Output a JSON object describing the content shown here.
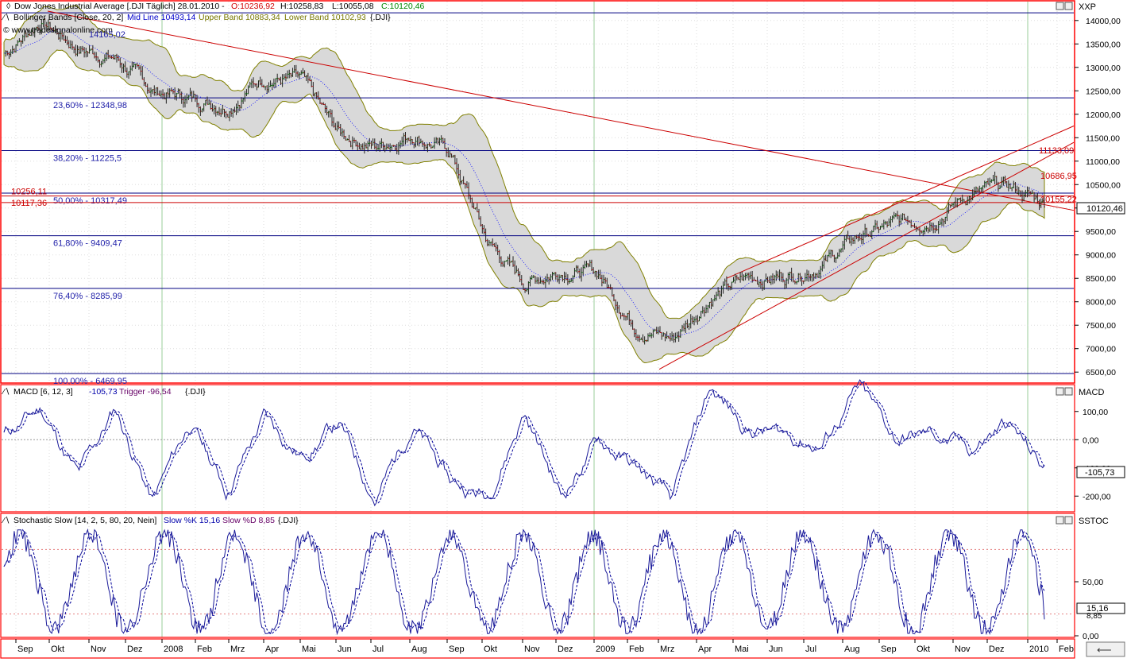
{
  "panes": {
    "price": {
      "title_line": "Dow Jones Industrial Average [.DJI  Täglich] 28.01.2010 - ",
      "ohlc": {
        "o": "O:10236,92",
        "h": "H:10258,83",
        "l": "L:10055,08",
        "c": "C:10120,46"
      },
      "bb_label": "Bollinger Bands [Close, 20, 2]",
      "bb_mid": "Mid Line 10493,14",
      "bb_upper": "Upper Band 10883,34",
      "bb_lower": "Lower Band 10102,93",
      "bb_sym": "{.DJI}",
      "watermark": "© www.tradesignalonline.com",
      "pane_label": "XXP",
      "last_value": "10120,46",
      "y_ticks": [
        "6500,00",
        "7000,00",
        "7500,00",
        "8000,00",
        "8500,00",
        "9000,00",
        "9500,00",
        "10000,00",
        "10500,00",
        "11000,00",
        "11500,00",
        "12000,00",
        "12500,00",
        "13000,00",
        "13500,00",
        "14000,00"
      ]
    },
    "macd": {
      "label": "MACD [6, 12, 3]",
      "value": "-105,73",
      "trigger": "Trigger -96,54",
      "sym": "{.DJI}",
      "pane_label": "MACD",
      "last_value": "-105,73",
      "y_ticks": [
        "100,00",
        "0,00",
        "-100,00",
        "-200,00"
      ]
    },
    "stoch": {
      "label": "Stochastic Slow [14, 2, 5, 80, 20, Nein]",
      "k": "Slow %K 15,16",
      "d": "Slow %D 8,85",
      "sym": "{.DJI}",
      "pane_label": "SSTOC",
      "last_value": "15,16",
      "last_value_d": "8,85",
      "y_ticks": [
        "50,00",
        "0,00"
      ]
    }
  },
  "fib_levels": [
    {
      "label": "23,60% - 12348,98",
      "value": 12348.98
    },
    {
      "label": "38,20% - 11225,5",
      "value": 11225.5
    },
    {
      "label": "50,00% - 10317,49",
      "value": 10317.49
    },
    {
      "label": "61,80% - 9409,47",
      "value": 9409.47
    },
    {
      "label": "76,40% - 8285,99",
      "value": 8285.99
    },
    {
      "label": "100,00% - 6469,95",
      "value": 6469.95
    }
  ],
  "fib_top_label": "14165,02",
  "red_labels": [
    "10256,11",
    "10117,36",
    "11133,09",
    "10686,95",
    "10155,22"
  ],
  "x_axis_labels": [
    "Sep",
    "Okt",
    "Nov",
    "Dez",
    "2008",
    "Feb",
    "Mrz",
    "Apr",
    "Mai",
    "Jun",
    "Jul",
    "Aug",
    "Sep",
    "Okt",
    "Nov",
    "Dez",
    "2009",
    "Feb",
    "Mrz",
    "Apr",
    "Mai",
    "Jun",
    "Jul",
    "Aug",
    "Sep",
    "Okt",
    "Nov",
    "Dez",
    "2010",
    "Feb"
  ],
  "chart_data": [
    {
      "type": "line",
      "title": "Dow Jones Industrial Average [.DJI  Täglich] 28.01.2010",
      "series": [
        {
          "name": "Dow Jones Industrial Average",
          "x": [
            "2007-09",
            "2007-10",
            "2007-11",
            "2007-12",
            "2008-01",
            "2008-02",
            "2008-03",
            "2008-04",
            "2008-05",
            "2008-06",
            "2008-07",
            "2008-08",
            "2008-09",
            "2008-10",
            "2008-11",
            "2008-12",
            "2009-01",
            "2009-02",
            "2009-03",
            "2009-04",
            "2009-05",
            "2009-06",
            "2009-07",
            "2009-08",
            "2009-09",
            "2009-10",
            "2009-11",
            "2009-12",
            "2010-01"
          ],
          "values": [
            13300,
            14000,
            13400,
            13200,
            12500,
            12350,
            12200,
            12800,
            12700,
            11600,
            11300,
            11600,
            11200,
            9300,
            8400,
            8700,
            8600,
            7500,
            7200,
            8100,
            8500,
            8550,
            8800,
            9400,
            9650,
            9800,
            10300,
            10450,
            10120
          ]
        }
      ],
      "ylim": [
        6300,
        14300
      ],
      "note_bands": {
        "upper": "Upper Band 10883,34",
        "lower": "Lower Band 10102,93",
        "mid": "Mid Line 10493,14"
      }
    },
    {
      "type": "line",
      "title": "MACD [6, 12, 3]",
      "series": [
        {
          "name": "MACD",
          "values": [
            20,
            110,
            -130,
            110,
            -220,
            60,
            -180,
            80,
            -60,
            60,
            -210,
            60,
            -150,
            -200,
            100,
            -200,
            0,
            -100,
            -220,
            180,
            40,
            20,
            -20,
            180,
            0,
            20,
            -40,
            60,
            -105.73
          ]
        },
        {
          "name": "Trigger",
          "values": [
            20,
            100,
            -110,
            100,
            -190,
            50,
            -160,
            70,
            -50,
            50,
            -190,
            50,
            -130,
            -180,
            80,
            -180,
            0,
            -90,
            -200,
            160,
            40,
            20,
            -10,
            160,
            0,
            20,
            -30,
            50,
            -96.54
          ]
        }
      ],
      "ylim": [
        -250,
        150
      ]
    },
    {
      "type": "line",
      "title": "Stochastic Slow [14, 2, 5, 80, 20, Nein]",
      "series": [
        {
          "name": "Slow %K",
          "values": [
            80,
            90,
            10,
            85,
            10,
            70,
            15,
            85,
            80,
            15,
            10,
            90,
            40,
            10,
            80,
            15,
            90,
            10,
            15,
            90,
            80,
            20,
            10,
            95,
            85,
            20,
            90,
            90,
            15.16
          ]
        },
        {
          "name": "Slow %D",
          "values": [
            75,
            85,
            15,
            80,
            15,
            65,
            20,
            80,
            75,
            20,
            12,
            85,
            45,
            12,
            75,
            20,
            85,
            12,
            18,
            85,
            75,
            25,
            12,
            90,
            80,
            25,
            85,
            85,
            8.85
          ]
        }
      ],
      "ylim": [
        0,
        100
      ]
    }
  ]
}
